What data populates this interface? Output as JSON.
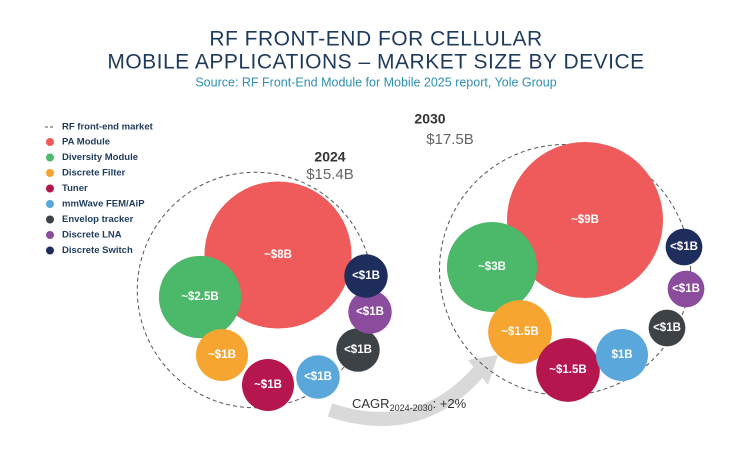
{
  "chart_data": {
    "type": "packed-bubble",
    "title": [
      "RF FRONT-END FOR CELLULAR",
      "MOBILE APPLICATIONS – MARKET SIZE BY DEVICE"
    ],
    "subtitle": "Source: RF Front-End Module for Mobile 2025 report, Yole Group",
    "market_legend": "RF front-end market",
    "series": [
      {
        "name": "PA Module",
        "color": "#ef5b5b"
      },
      {
        "name": "Diversity Module",
        "color": "#4cb86a"
      },
      {
        "name": "Discrete Filter",
        "color": "#f7a531"
      },
      {
        "name": "Tuner",
        "color": "#b5164e"
      },
      {
        "name": "mmWave FEM/AiP",
        "color": "#5aa7dc"
      },
      {
        "name": "Envelop tracker",
        "color": "#3d4247"
      },
      {
        "name": "Discrete LNA",
        "color": "#8c4c9e"
      },
      {
        "name": "Discrete Switch",
        "color": "#1f2d5c"
      }
    ],
    "groups": [
      {
        "year": "2024",
        "total": 15.4,
        "total_label": "$15.4B",
        "values": [
          8,
          2.5,
          1,
          1,
          0.7,
          0.7,
          0.7,
          0.7
        ],
        "value_labels": [
          "~$8B",
          "~$2.5B",
          "~$1B",
          "~$1B",
          "<$1B",
          "<$1B",
          "<$1B",
          "<$1B"
        ]
      },
      {
        "year": "2030",
        "total": 17.5,
        "total_label": "$17.5B",
        "values": [
          9,
          3,
          1.5,
          1.5,
          1,
          0.5,
          0.5,
          0.5
        ],
        "value_labels": [
          "~$9B",
          "~$3B",
          "~$1.5B",
          "~$1.5B",
          "$1B",
          "<$1B",
          "<$1B",
          "<$1B"
        ]
      }
    ],
    "cagr": {
      "label": "CAGR",
      "period": "2024-2030",
      "value_label": ": +2%"
    }
  }
}
